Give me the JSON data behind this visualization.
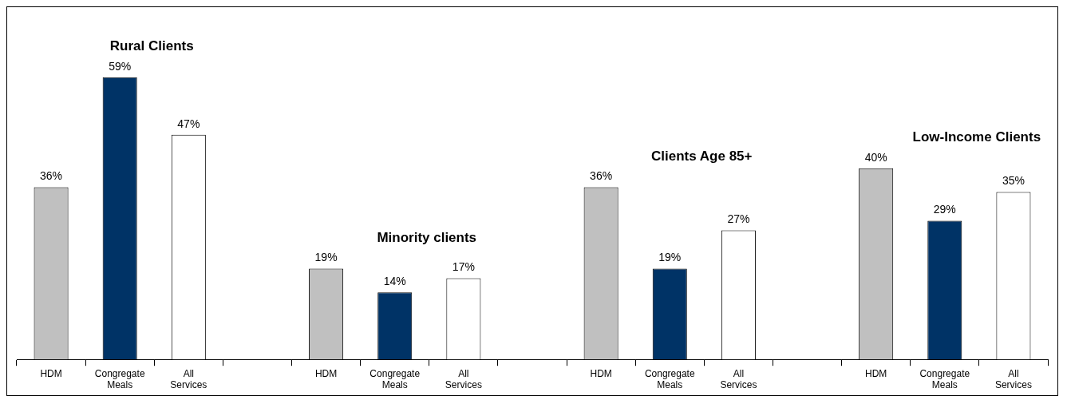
{
  "chart_data": {
    "type": "bar",
    "categories": [
      "HDM",
      "Congregate Meals",
      "All Services",
      null,
      "HDM",
      "Congregate Meals",
      "All Services",
      null,
      "HDM",
      "Congregate Meals",
      "All Services",
      null,
      "HDM",
      "Congregate Meals",
      "All Services"
    ],
    "values": [
      36,
      59,
      47,
      null,
      19,
      14,
      17,
      null,
      36,
      19,
      27,
      null,
      40,
      29,
      35
    ],
    "colors": [
      "#c0c0c0",
      "#003366",
      "#ffffff",
      null,
      "#c0c0c0",
      "#003366",
      "#ffffff",
      null,
      "#c0c0c0",
      "#003366",
      "#ffffff",
      null,
      "#c0c0c0",
      "#003366",
      "#ffffff"
    ],
    "value_labels": [
      "36%",
      "59%",
      "47%",
      null,
      "19%",
      "14%",
      "17%",
      null,
      "36%",
      "19%",
      "27%",
      null,
      "40%",
      "29%",
      "35%"
    ],
    "annotations": [
      "Rural Clients",
      "Minority clients",
      "Clients Age 85+",
      "Low-Income Clients"
    ],
    "legend": false
  }
}
